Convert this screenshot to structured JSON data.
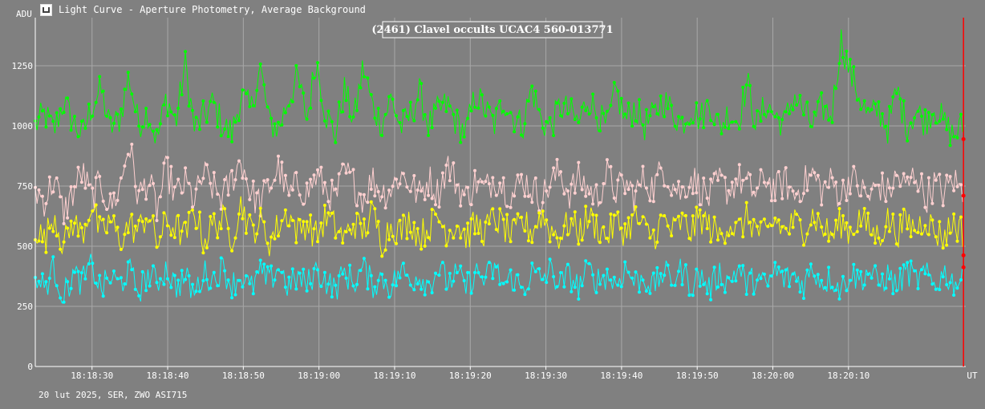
{
  "window": {
    "title": "Light Curve - Aperture Photometry, Average Background",
    "icon": "chart-icon"
  },
  "footer": {
    "text": "20 lut 2025, SER, ZWO ASI715"
  },
  "chart_data": {
    "type": "line",
    "title": "(2461) Clavel occults UCAC4 560-013771",
    "ylabel": "ADU",
    "xlabel": "UT",
    "ylim": [
      0,
      1450
    ],
    "yticks": [
      0,
      250,
      500,
      750,
      1000,
      1250
    ],
    "xticks": [
      "18:18:30",
      "18:18:40",
      "18:18:50",
      "18:19:00",
      "18:19:10",
      "18:19:20",
      "18:19:30",
      "18:19:40",
      "18:19:50",
      "18:20:00",
      "18:20:10"
    ],
    "xlim": [
      "18:18:22.5",
      "18:20:25.5"
    ],
    "grid": true,
    "cursor_time": "18:20:25.2",
    "background": "#808080",
    "series": [
      {
        "color": "#00ff00",
        "mean": 1010,
        "spread": 85,
        "samples": [
          1000,
          1050,
          980,
          1100,
          1020,
          960,
          1080,
          1150,
          990,
          1030,
          1210,
          1005,
          1060,
          940,
          1120,
          1010,
          1260,
          985,
          1040,
          1095,
          1000,
          970,
          1130,
          1060,
          1245,
          1010,
          990,
          1110,
          1200,
          1030,
          1280,
          1050,
          960,
          1150,
          1020,
          1250,
          1080,
          1010,
          1120,
          990,
          1040,
          1140,
          1000,
          1060,
          1090,
          1010,
          975,
          1130,
          1070,
          1005,
          1110,
          1040,
          1000,
          1160,
          1020,
          995,
          1080,
          1060,
          1010,
          1120,
          1050,
          990,
          1145,
          1020,
          1080,
          1000,
          1040,
          1110,
          1060,
          1010,
          1075,
          1030,
          1100,
          990,
          1055,
          1020,
          1180,
          1000,
          1090,
          1040,
          1010,
          1130,
          1060,
          1000,
          1080,
          1040,
          1360,
          1220,
          1120,
          1030,
          1070,
          990,
          1150,
          1000,
          1060,
          1020,
          1080,
          1010,
          960,
          1000
        ]
      },
      {
        "color": "#ffd0d0",
        "mean": 720,
        "spread": 90,
        "samples": [
          730,
          690,
          780,
          640,
          720,
          810,
          700,
          760,
          660,
          740,
          930,
          700,
          780,
          650,
          820,
          710,
          760,
          690,
          800,
          740,
          700,
          780,
          860,
          720,
          680,
          750,
          830,
          700,
          760,
          720,
          790,
          740,
          690,
          810,
          760,
          700,
          780,
          720,
          740,
          800,
          760,
          710,
          780,
          720,
          840,
          760,
          700,
          770,
          730,
          790,
          750,
          710,
          780,
          740,
          700,
          760,
          810,
          720,
          780,
          740,
          700,
          800,
          730,
          760,
          710,
          780,
          740,
          830,
          760,
          720,
          790,
          740,
          700,
          770,
          730,
          780,
          750,
          720,
          790,
          730,
          770,
          710,
          760,
          800,
          730,
          770,
          710,
          790,
          740,
          700,
          760,
          720,
          790,
          740,
          810,
          700,
          760,
          720,
          780,
          720
        ]
      },
      {
        "color": "#ffff00",
        "mean": 570,
        "spread": 85,
        "samples": [
          580,
          520,
          640,
          500,
          600,
          550,
          680,
          540,
          610,
          520,
          590,
          560,
          640,
          510,
          600,
          580,
          540,
          650,
          520,
          590,
          610,
          540,
          680,
          560,
          600,
          520,
          590,
          640,
          560,
          600,
          540,
          620,
          580,
          530,
          600,
          560,
          640,
          520,
          590,
          560,
          610,
          540,
          580,
          620,
          560,
          600,
          540,
          590,
          560,
          620,
          580,
          540,
          600,
          560,
          630,
          570,
          540,
          600,
          560,
          620,
          580,
          540,
          600,
          560,
          620,
          570,
          540,
          610,
          560,
          600,
          560,
          620,
          580,
          540,
          600,
          560,
          620,
          570,
          540,
          610,
          560,
          600,
          570,
          630,
          580,
          540,
          600,
          560,
          620,
          570,
          540,
          610,
          560,
          600,
          570,
          620,
          560,
          540,
          600,
          560
        ]
      },
      {
        "color": "#00ffff",
        "mean": 370,
        "spread": 75,
        "samples": [
          360,
          330,
          410,
          290,
          380,
          350,
          420,
          320,
          370,
          340,
          400,
          310,
          380,
          350,
          410,
          330,
          370,
          300,
          390,
          360,
          410,
          340,
          380,
          320,
          390,
          350,
          420,
          330,
          370,
          340,
          400,
          360,
          320,
          390,
          350,
          410,
          340,
          370,
          330,
          400,
          360,
          380,
          340,
          410,
          350,
          380,
          330,
          390,
          360,
          410,
          340,
          370,
          320,
          390,
          360,
          400,
          340,
          380,
          330,
          400,
          360,
          380,
          340,
          410,
          350,
          370,
          330,
          390,
          360,
          400,
          340,
          380,
          320,
          390,
          350,
          410,
          340,
          370,
          330,
          400,
          360,
          380,
          340,
          410,
          350,
          370,
          320,
          390,
          360,
          400,
          340,
          380,
          330,
          400,
          360,
          380,
          340,
          390,
          350,
          360
        ]
      }
    ]
  }
}
